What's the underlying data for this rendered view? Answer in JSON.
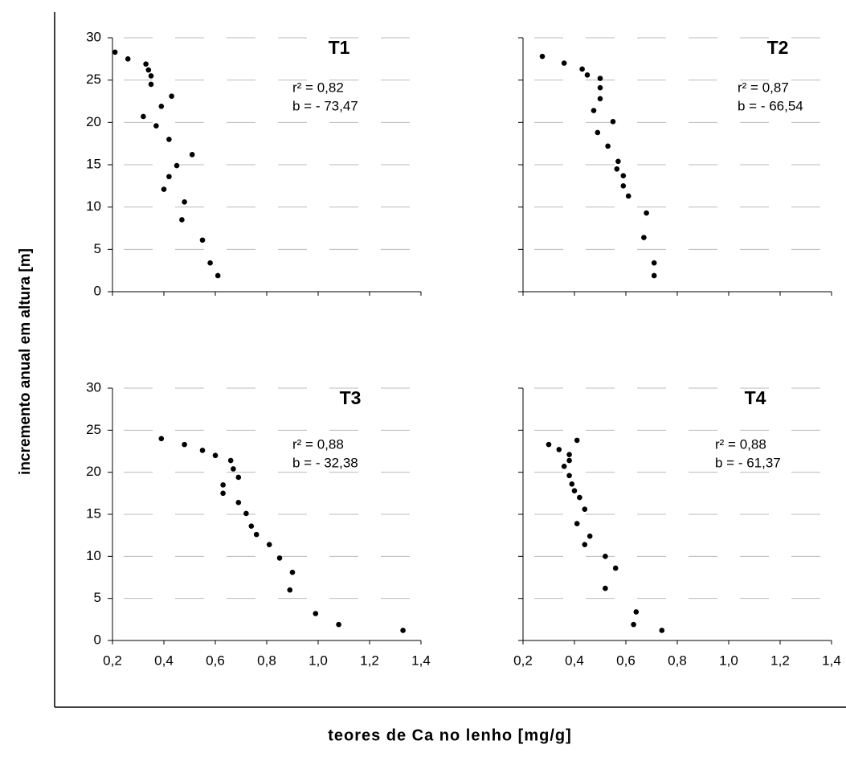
{
  "ylabel": "incremento anual em altura [m]",
  "xlabel": "teores de Ca no lenho [mg/g]",
  "chart_data": [
    {
      "type": "scatter",
      "title": "T1",
      "annotations": [
        "r² = 0,82",
        "b = - 73,47"
      ],
      "color": "#000000",
      "grid": true,
      "ytick_labels": true,
      "x": [
        0.21,
        0.26,
        0.33,
        0.34,
        0.35,
        0.35,
        0.43,
        0.39,
        0.32,
        0.37,
        0.42,
        0.51,
        0.45,
        0.42,
        0.4,
        0.48,
        0.47,
        0.55,
        0.58,
        0.61
      ],
      "values": [
        28.3,
        27.5,
        26.9,
        26.2,
        25.5,
        24.5,
        23.1,
        21.9,
        20.7,
        19.6,
        18.0,
        16.2,
        14.9,
        13.6,
        12.1,
        10.6,
        8.5,
        6.1,
        3.4,
        1.9
      ],
      "xlim": [
        0.2,
        1.4
      ],
      "ylim": [
        0,
        30
      ],
      "xticks": [
        0.2,
        0.4,
        0.6,
        0.8,
        1.0,
        1.2,
        1.4
      ],
      "yticks": [
        0,
        5,
        10,
        15,
        20,
        25,
        30
      ]
    },
    {
      "type": "scatter",
      "title": "T2",
      "annotations": [
        "r² = 0,87",
        "b = - 66,54"
      ],
      "color": "#000000",
      "grid": true,
      "ytick_labels": false,
      "x": [
        0.275,
        0.36,
        0.43,
        0.45,
        0.5,
        0.5,
        0.5,
        0.475,
        0.55,
        0.49,
        0.53,
        0.57,
        0.565,
        0.59,
        0.59,
        0.61,
        0.68,
        0.67,
        0.71,
        0.71
      ],
      "values": [
        27.8,
        27.0,
        26.3,
        25.6,
        25.2,
        24.1,
        22.8,
        21.4,
        20.1,
        18.8,
        17.2,
        15.4,
        14.5,
        13.7,
        12.5,
        11.3,
        9.3,
        6.4,
        3.4,
        1.9
      ],
      "xlim": [
        0.2,
        1.4
      ],
      "ylim": [
        0,
        30
      ],
      "xticks": [
        0.2,
        0.4,
        0.6,
        0.8,
        1.0,
        1.2,
        1.4
      ],
      "yticks": [
        0,
        5,
        10,
        15,
        20,
        25,
        30
      ]
    },
    {
      "type": "scatter",
      "title": "T3",
      "annotations": [
        "r² = 0,88",
        "b = - 32,38"
      ],
      "color": "#000000",
      "grid": true,
      "ytick_labels": true,
      "x": [
        0.39,
        0.48,
        0.55,
        0.6,
        0.66,
        0.67,
        0.69,
        0.63,
        0.63,
        0.69,
        0.72,
        0.74,
        0.76,
        0.81,
        0.85,
        0.9,
        0.89,
        0.99,
        1.08,
        1.33
      ],
      "values": [
        24.0,
        23.3,
        22.6,
        22.0,
        21.4,
        20.4,
        19.4,
        18.5,
        17.5,
        16.4,
        15.1,
        13.6,
        12.6,
        11.4,
        9.8,
        8.1,
        6.0,
        3.2,
        1.9,
        1.2
      ],
      "xlim": [
        0.2,
        1.4
      ],
      "ylim": [
        0,
        30
      ],
      "xticks": [
        {
          "value": 0.2,
          "label": "0,2"
        },
        {
          "value": 0.4,
          "label": "0,4"
        },
        {
          "value": 0.6,
          "label": "0,6"
        },
        {
          "value": 0.8,
          "label": "0,8"
        },
        {
          "value": 1.0,
          "label": "1,0"
        },
        {
          "value": 1.2,
          "label": "1,2"
        },
        {
          "value": 1.4,
          "label": "1,4"
        }
      ],
      "yticks": [
        0,
        5,
        10,
        15,
        20,
        25,
        30
      ]
    },
    {
      "type": "scatter",
      "title": "T4",
      "annotations": [
        "r² = 0,88",
        "b = - 61,37"
      ],
      "color": "#000000",
      "grid": true,
      "ytick_labels": false,
      "x": [
        0.3,
        0.34,
        0.38,
        0.41,
        0.38,
        0.36,
        0.38,
        0.39,
        0.4,
        0.42,
        0.44,
        0.41,
        0.46,
        0.44,
        0.52,
        0.56,
        0.52,
        0.64,
        0.63,
        0.74
      ],
      "values": [
        23.3,
        22.7,
        22.1,
        23.8,
        21.4,
        20.7,
        19.6,
        18.6,
        17.8,
        17.0,
        15.6,
        13.9,
        12.4,
        11.4,
        10.0,
        8.6,
        6.2,
        3.4,
        1.9,
        1.2
      ],
      "xlim": [
        0.2,
        1.4
      ],
      "ylim": [
        0,
        30
      ],
      "xticks": [
        {
          "value": 0.2,
          "label": "0,2"
        },
        {
          "value": 0.4,
          "label": "0,4"
        },
        {
          "value": 0.6,
          "label": "0,6"
        },
        {
          "value": 0.8,
          "label": "0,8"
        },
        {
          "value": 1.0,
          "label": "1,0"
        },
        {
          "value": 1.2,
          "label": "1,2"
        },
        {
          "value": 1.4,
          "label": "1,4"
        }
      ],
      "yticks": [
        0,
        5,
        10,
        15,
        20,
        25,
        30
      ]
    }
  ]
}
